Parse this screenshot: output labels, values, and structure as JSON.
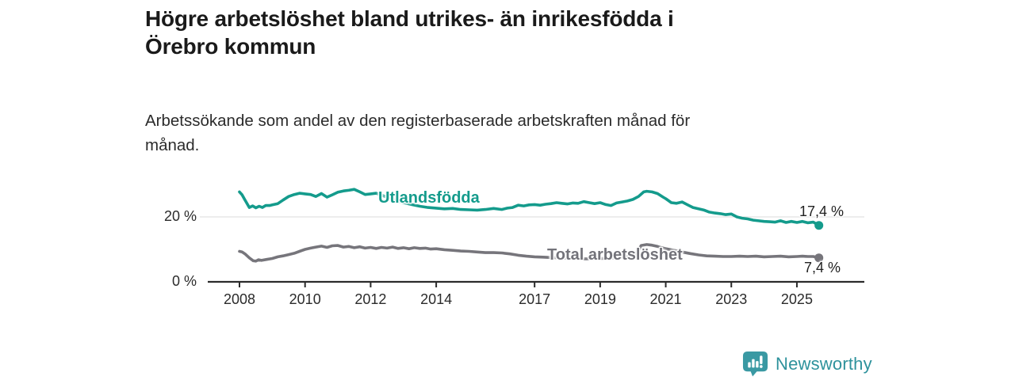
{
  "chart_data": {
    "type": "line",
    "title": "Högre arbetslöshet bland utrikes- än inrikesfödda i Örebro kommun",
    "title_lines": [
      "Högre arbetslöshet bland utrikes- än inrikesfödda i",
      "Örebro kommun"
    ],
    "subtitle": "Arbetssökande som andel av den registerbaserade arbetskraften månad för månad.",
    "subtitle_lines": [
      "Arbetssökande som andel av den registerbaserade arbetskraften månad för",
      "månad."
    ],
    "unit": "%",
    "xlabel": "",
    "ylabel": "",
    "ylim": [
      0,
      30
    ],
    "x_axis": {
      "ticks": [
        2008,
        2010,
        2012,
        2014,
        2017,
        2019,
        2021,
        2023,
        2025
      ],
      "range_years": [
        2007.0,
        2026.1
      ]
    },
    "y_ticks": [
      {
        "value": 0,
        "label": "0 %",
        "grid": false
      },
      {
        "value": 20,
        "label": "20 %",
        "grid": true
      }
    ],
    "grid": "horizontal-only",
    "legend_position": "inline-series-labels",
    "axis_color": "#2b2b2b",
    "gridline_color": "#e2e2e2",
    "series": [
      {
        "name": "Utlandsfödda",
        "color": "#149b8c",
        "end_label": "17,4 %",
        "end_value": 17.4,
        "points": [
          [
            2008.0,
            27.7
          ],
          [
            2008.08,
            26.8
          ],
          [
            2008.17,
            25.2
          ],
          [
            2008.3,
            22.9
          ],
          [
            2008.4,
            23.4
          ],
          [
            2008.5,
            22.8
          ],
          [
            2008.6,
            23.3
          ],
          [
            2008.7,
            22.9
          ],
          [
            2008.8,
            23.5
          ],
          [
            2008.92,
            23.5
          ],
          [
            2009.0,
            23.7
          ],
          [
            2009.17,
            24.1
          ],
          [
            2009.33,
            25.2
          ],
          [
            2009.5,
            26.3
          ],
          [
            2009.67,
            26.9
          ],
          [
            2009.83,
            27.3
          ],
          [
            2010.0,
            27.1
          ],
          [
            2010.17,
            26.9
          ],
          [
            2010.33,
            26.3
          ],
          [
            2010.5,
            27.2
          ],
          [
            2010.67,
            26.1
          ],
          [
            2010.83,
            26.8
          ],
          [
            2011.0,
            27.6
          ],
          [
            2011.17,
            28.0
          ],
          [
            2011.33,
            28.2
          ],
          [
            2011.5,
            28.5
          ],
          [
            2011.67,
            27.7
          ],
          [
            2011.83,
            26.9
          ],
          [
            2012.0,
            27.1
          ],
          [
            2012.17,
            27.3
          ],
          [
            2012.33,
            26.7
          ],
          [
            2012.5,
            26.1
          ],
          [
            2012.67,
            25.5
          ],
          [
            2012.83,
            24.9
          ],
          [
            2013.0,
            24.4
          ],
          [
            2013.25,
            23.8
          ],
          [
            2013.5,
            23.3
          ],
          [
            2013.75,
            22.9
          ],
          [
            2014.0,
            22.7
          ],
          [
            2014.25,
            22.5
          ],
          [
            2014.5,
            22.6
          ],
          [
            2014.75,
            22.3
          ],
          [
            2015.0,
            22.2
          ],
          [
            2015.25,
            22.1
          ],
          [
            2015.5,
            22.3
          ],
          [
            2015.75,
            22.6
          ],
          [
            2016.0,
            22.3
          ],
          [
            2016.17,
            22.7
          ],
          [
            2016.33,
            22.9
          ],
          [
            2016.5,
            23.6
          ],
          [
            2016.67,
            23.4
          ],
          [
            2016.83,
            23.7
          ],
          [
            2017.0,
            23.8
          ],
          [
            2017.17,
            23.6
          ],
          [
            2017.33,
            23.9
          ],
          [
            2017.5,
            24.1
          ],
          [
            2017.67,
            24.4
          ],
          [
            2017.83,
            24.2
          ],
          [
            2018.0,
            24.0
          ],
          [
            2018.17,
            24.3
          ],
          [
            2018.33,
            24.2
          ],
          [
            2018.5,
            24.7
          ],
          [
            2018.67,
            24.4
          ],
          [
            2018.83,
            24.1
          ],
          [
            2019.0,
            24.4
          ],
          [
            2019.17,
            23.8
          ],
          [
            2019.33,
            23.5
          ],
          [
            2019.5,
            24.3
          ],
          [
            2019.67,
            24.6
          ],
          [
            2019.83,
            24.9
          ],
          [
            2020.0,
            25.4
          ],
          [
            2020.17,
            26.3
          ],
          [
            2020.33,
            27.7
          ],
          [
            2020.42,
            27.9
          ],
          [
            2020.58,
            27.7
          ],
          [
            2020.75,
            27.2
          ],
          [
            2020.92,
            26.1
          ],
          [
            2021.0,
            25.6
          ],
          [
            2021.17,
            24.4
          ],
          [
            2021.33,
            24.2
          ],
          [
            2021.5,
            24.6
          ],
          [
            2021.67,
            23.7
          ],
          [
            2021.83,
            22.9
          ],
          [
            2022.0,
            22.5
          ],
          [
            2022.17,
            22.1
          ],
          [
            2022.33,
            21.5
          ],
          [
            2022.5,
            21.2
          ],
          [
            2022.67,
            21.0
          ],
          [
            2022.83,
            20.7
          ],
          [
            2023.0,
            20.9
          ],
          [
            2023.17,
            20.0
          ],
          [
            2023.33,
            19.6
          ],
          [
            2023.5,
            19.4
          ],
          [
            2023.67,
            19.0
          ],
          [
            2023.83,
            18.8
          ],
          [
            2024.0,
            18.6
          ],
          [
            2024.17,
            18.5
          ],
          [
            2024.33,
            18.4
          ],
          [
            2024.5,
            18.8
          ],
          [
            2024.67,
            18.3
          ],
          [
            2024.83,
            18.6
          ],
          [
            2025.0,
            18.3
          ],
          [
            2025.17,
            18.6
          ],
          [
            2025.33,
            18.2
          ],
          [
            2025.5,
            18.4
          ],
          [
            2025.67,
            17.4
          ]
        ]
      },
      {
        "name": "Total arbetslöshet",
        "color": "#76757b",
        "end_label": "7,4 %",
        "end_value": 7.4,
        "points": [
          [
            2008.0,
            9.4
          ],
          [
            2008.08,
            9.2
          ],
          [
            2008.17,
            8.6
          ],
          [
            2008.3,
            7.4
          ],
          [
            2008.42,
            6.5
          ],
          [
            2008.5,
            6.4
          ],
          [
            2008.58,
            6.8
          ],
          [
            2008.67,
            6.6
          ],
          [
            2008.83,
            6.9
          ],
          [
            2009.0,
            7.2
          ],
          [
            2009.17,
            7.7
          ],
          [
            2009.33,
            8.0
          ],
          [
            2009.5,
            8.4
          ],
          [
            2009.67,
            8.8
          ],
          [
            2009.83,
            9.4
          ],
          [
            2010.0,
            10.0
          ],
          [
            2010.17,
            10.4
          ],
          [
            2010.33,
            10.7
          ],
          [
            2010.5,
            11.0
          ],
          [
            2010.67,
            10.6
          ],
          [
            2010.83,
            11.1
          ],
          [
            2011.0,
            11.2
          ],
          [
            2011.17,
            10.7
          ],
          [
            2011.33,
            10.9
          ],
          [
            2011.5,
            10.5
          ],
          [
            2011.67,
            10.8
          ],
          [
            2011.83,
            10.4
          ],
          [
            2012.0,
            10.6
          ],
          [
            2012.17,
            10.3
          ],
          [
            2012.33,
            10.6
          ],
          [
            2012.5,
            10.4
          ],
          [
            2012.67,
            10.7
          ],
          [
            2012.83,
            10.3
          ],
          [
            2013.0,
            10.5
          ],
          [
            2013.17,
            10.2
          ],
          [
            2013.33,
            10.5
          ],
          [
            2013.5,
            10.3
          ],
          [
            2013.67,
            10.4
          ],
          [
            2013.83,
            10.1
          ],
          [
            2014.0,
            10.2
          ],
          [
            2014.25,
            9.9
          ],
          [
            2014.5,
            9.7
          ],
          [
            2014.75,
            9.5
          ],
          [
            2015.0,
            9.4
          ],
          [
            2015.25,
            9.2
          ],
          [
            2015.5,
            9.0
          ],
          [
            2015.75,
            9.0
          ],
          [
            2016.0,
            8.9
          ],
          [
            2016.25,
            8.6
          ],
          [
            2016.5,
            8.2
          ],
          [
            2016.75,
            7.9
          ],
          [
            2017.0,
            7.7
          ],
          [
            2017.25,
            7.6
          ],
          [
            2017.5,
            7.5
          ],
          [
            2017.75,
            7.4
          ],
          [
            2018.0,
            7.3
          ],
          [
            2018.25,
            7.2
          ],
          [
            2018.5,
            7.1
          ],
          [
            2018.75,
            7.1
          ],
          [
            2019.0,
            7.2
          ],
          [
            2019.25,
            7.3
          ],
          [
            2019.5,
            7.4
          ],
          [
            2019.75,
            7.6
          ],
          [
            2020.0,
            8.2
          ],
          [
            2020.17,
            9.6
          ],
          [
            2020.25,
            11.2
          ],
          [
            2020.42,
            11.5
          ],
          [
            2020.58,
            11.3
          ],
          [
            2020.75,
            10.9
          ],
          [
            2021.0,
            10.2
          ],
          [
            2021.25,
            9.7
          ],
          [
            2021.5,
            9.2
          ],
          [
            2021.75,
            8.7
          ],
          [
            2022.0,
            8.3
          ],
          [
            2022.25,
            8.0
          ],
          [
            2022.5,
            7.9
          ],
          [
            2022.75,
            7.8
          ],
          [
            2023.0,
            7.8
          ],
          [
            2023.25,
            7.9
          ],
          [
            2023.5,
            7.8
          ],
          [
            2023.75,
            7.9
          ],
          [
            2024.0,
            7.7
          ],
          [
            2024.25,
            7.8
          ],
          [
            2024.5,
            7.9
          ],
          [
            2024.75,
            7.7
          ],
          [
            2025.0,
            7.8
          ],
          [
            2025.17,
            7.9
          ],
          [
            2025.33,
            7.8
          ],
          [
            2025.5,
            7.8
          ],
          [
            2025.67,
            7.4
          ]
        ]
      }
    ]
  },
  "footer": {
    "brand": "Newsworthy",
    "logo_icon": "bar-chart-speech-bubble-icon",
    "brand_color": "#3a99a3"
  }
}
